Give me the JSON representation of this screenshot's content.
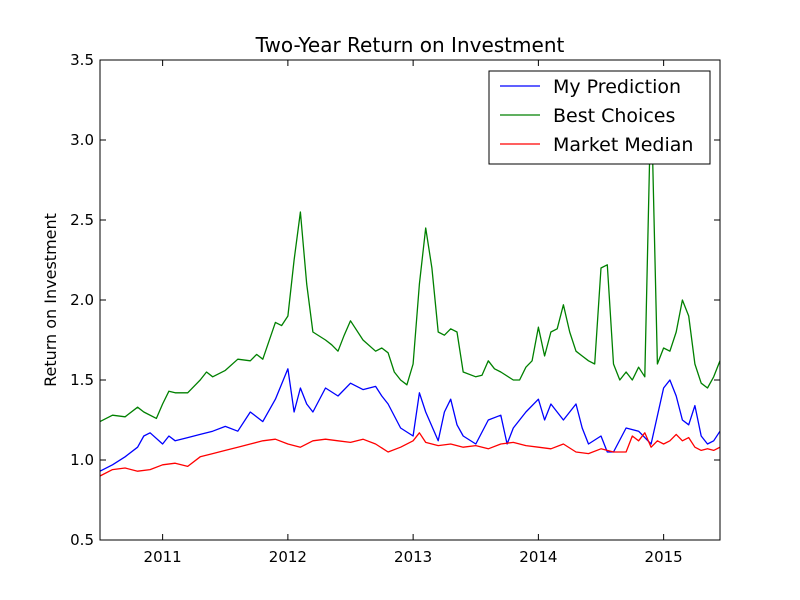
{
  "chart_data": {
    "type": "line",
    "title": "Two-Year Return on Investment",
    "xlabel": "",
    "ylabel": "Return on Investment",
    "xlim": [
      2010.5,
      2015.45
    ],
    "ylim": [
      0.5,
      3.5
    ],
    "xticks": [
      2011,
      2012,
      2013,
      2014,
      2015
    ],
    "yticks": [
      "0.5",
      "1.0",
      "1.5",
      "2.0",
      "2.5",
      "3.0",
      "3.5"
    ],
    "grid": false,
    "legend_position": "top-right",
    "series": [
      {
        "name": "My Prediction",
        "color": "#0000ff",
        "x": [
          2010.5,
          2010.6,
          2010.7,
          2010.8,
          2010.85,
          2010.9,
          2011.0,
          2011.05,
          2011.1,
          2011.2,
          2011.3,
          2011.4,
          2011.5,
          2011.6,
          2011.7,
          2011.8,
          2011.9,
          2012.0,
          2012.05,
          2012.1,
          2012.15,
          2012.2,
          2012.3,
          2012.4,
          2012.5,
          2012.6,
          2012.7,
          2012.75,
          2012.8,
          2012.9,
          2013.0,
          2013.05,
          2013.1,
          2013.2,
          2013.25,
          2013.3,
          2013.35,
          2013.4,
          2013.5,
          2013.6,
          2013.7,
          2013.75,
          2013.8,
          2013.9,
          2014.0,
          2014.05,
          2014.1,
          2014.2,
          2014.3,
          2014.35,
          2014.4,
          2014.5,
          2014.55,
          2014.6,
          2014.7,
          2014.8,
          2014.9,
          2015.0,
          2015.05,
          2015.1,
          2015.15,
          2015.2,
          2015.25,
          2015.3,
          2015.35,
          2015.4,
          2015.45
        ],
        "y": [
          0.93,
          0.97,
          1.02,
          1.08,
          1.15,
          1.17,
          1.1,
          1.15,
          1.12,
          1.14,
          1.16,
          1.18,
          1.21,
          1.18,
          1.3,
          1.24,
          1.38,
          1.57,
          1.3,
          1.45,
          1.35,
          1.3,
          1.45,
          1.4,
          1.48,
          1.44,
          1.46,
          1.4,
          1.35,
          1.2,
          1.15,
          1.42,
          1.3,
          1.12,
          1.3,
          1.38,
          1.22,
          1.15,
          1.1,
          1.25,
          1.28,
          1.1,
          1.2,
          1.3,
          1.38,
          1.25,
          1.35,
          1.25,
          1.35,
          1.2,
          1.1,
          1.15,
          1.05,
          1.05,
          1.2,
          1.18,
          1.1,
          1.45,
          1.5,
          1.4,
          1.25,
          1.22,
          1.34,
          1.15,
          1.1,
          1.12,
          1.18
        ]
      },
      {
        "name": "Best Choices",
        "color": "#008000",
        "x": [
          2010.5,
          2010.6,
          2010.7,
          2010.8,
          2010.85,
          2010.95,
          2011.0,
          2011.05,
          2011.1,
          2011.2,
          2011.3,
          2011.35,
          2011.4,
          2011.5,
          2011.6,
          2011.7,
          2011.75,
          2011.8,
          2011.9,
          2011.95,
          2012.0,
          2012.05,
          2012.1,
          2012.15,
          2012.2,
          2012.3,
          2012.35,
          2012.4,
          2012.45,
          2012.5,
          2012.6,
          2012.7,
          2012.75,
          2012.8,
          2012.85,
          2012.9,
          2012.95,
          2013.0,
          2013.05,
          2013.1,
          2013.15,
          2013.2,
          2013.25,
          2013.3,
          2013.35,
          2013.4,
          2013.5,
          2013.55,
          2013.6,
          2013.65,
          2013.7,
          2013.8,
          2013.85,
          2013.9,
          2013.95,
          2014.0,
          2014.05,
          2014.1,
          2014.15,
          2014.2,
          2014.25,
          2014.3,
          2014.35,
          2014.4,
          2014.45,
          2014.5,
          2014.55,
          2014.6,
          2014.65,
          2014.7,
          2014.75,
          2014.8,
          2014.85,
          2014.9,
          2014.95,
          2015.0,
          2015.05,
          2015.1,
          2015.15,
          2015.2,
          2015.25,
          2015.3,
          2015.35,
          2015.4,
          2015.45
        ],
        "y": [
          1.24,
          1.28,
          1.27,
          1.33,
          1.3,
          1.26,
          1.35,
          1.43,
          1.42,
          1.42,
          1.5,
          1.55,
          1.52,
          1.56,
          1.63,
          1.62,
          1.66,
          1.63,
          1.86,
          1.84,
          1.9,
          2.25,
          2.55,
          2.1,
          1.8,
          1.75,
          1.72,
          1.68,
          1.78,
          1.87,
          1.75,
          1.68,
          1.7,
          1.67,
          1.55,
          1.5,
          1.47,
          1.6,
          2.1,
          2.45,
          2.2,
          1.8,
          1.78,
          1.82,
          1.8,
          1.55,
          1.52,
          1.53,
          1.62,
          1.57,
          1.55,
          1.5,
          1.5,
          1.58,
          1.62,
          1.83,
          1.65,
          1.8,
          1.82,
          1.97,
          1.8,
          1.68,
          1.65,
          1.62,
          1.6,
          2.2,
          2.22,
          1.6,
          1.5,
          1.55,
          1.5,
          1.58,
          1.52,
          3.3,
          1.6,
          1.7,
          1.68,
          1.8,
          2.0,
          1.9,
          1.6,
          1.48,
          1.45,
          1.52,
          1.62
        ]
      },
      {
        "name": "Market Median",
        "color": "#ff0000",
        "x": [
          2010.5,
          2010.6,
          2010.7,
          2010.8,
          2010.9,
          2011.0,
          2011.1,
          2011.2,
          2011.3,
          2011.4,
          2011.5,
          2011.6,
          2011.7,
          2011.8,
          2011.9,
          2012.0,
          2012.1,
          2012.2,
          2012.3,
          2012.4,
          2012.5,
          2012.6,
          2012.7,
          2012.8,
          2012.9,
          2013.0,
          2013.05,
          2013.1,
          2013.2,
          2013.3,
          2013.4,
          2013.5,
          2013.6,
          2013.7,
          2013.8,
          2013.9,
          2014.0,
          2014.1,
          2014.2,
          2014.3,
          2014.4,
          2014.5,
          2014.6,
          2014.7,
          2014.75,
          2014.8,
          2014.85,
          2014.9,
          2014.95,
          2015.0,
          2015.05,
          2015.1,
          2015.15,
          2015.2,
          2015.25,
          2015.3,
          2015.35,
          2015.4,
          2015.45
        ],
        "y": [
          0.9,
          0.94,
          0.95,
          0.93,
          0.94,
          0.97,
          0.98,
          0.96,
          1.02,
          1.04,
          1.06,
          1.08,
          1.1,
          1.12,
          1.13,
          1.1,
          1.08,
          1.12,
          1.13,
          1.12,
          1.11,
          1.13,
          1.1,
          1.05,
          1.08,
          1.12,
          1.17,
          1.11,
          1.09,
          1.1,
          1.08,
          1.09,
          1.07,
          1.1,
          1.11,
          1.09,
          1.08,
          1.07,
          1.1,
          1.05,
          1.04,
          1.07,
          1.05,
          1.05,
          1.15,
          1.12,
          1.17,
          1.08,
          1.12,
          1.1,
          1.12,
          1.16,
          1.12,
          1.14,
          1.08,
          1.06,
          1.07,
          1.06,
          1.08
        ]
      }
    ]
  }
}
